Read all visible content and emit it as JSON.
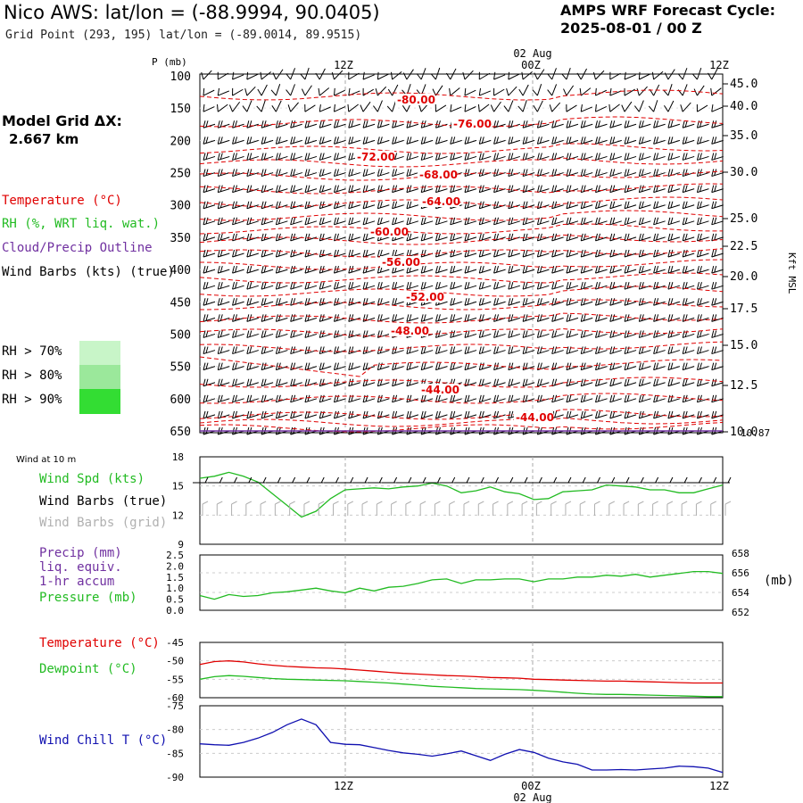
{
  "header": {
    "title": "Nico AWS:  lat/lon = (-88.9994, 90.0405)",
    "subtitle": "Grid Point (293, 195) lat/lon = (-89.0014, 89.9515)",
    "cycle_line1": "AMPS WRF Forecast Cycle:",
    "cycle_line2": "2025-08-01 / 00  Z"
  },
  "model_grid": {
    "label": "Model Grid ΔX:",
    "value": "2.667 km"
  },
  "legend_upper": {
    "temperature": "Temperature (°C)",
    "rh": "RH (%, WRT liq. wat.)",
    "cloud": "Cloud/Precip Outline",
    "wind": "Wind Barbs (kts) (true)",
    "rh70": "RH > 70%",
    "rh80": "RH > 80%",
    "rh90": "RH > 90%"
  },
  "legend_lower": {
    "wind10m": "Wind at 10 m",
    "wind_spd": "Wind Spd (kts)",
    "barbs_true": "Wind Barbs (true)",
    "barbs_grid": "Wind Barbs (grid)",
    "precip1": "Precip (mm)",
    "precip2": "liq. equiv.",
    "precip3": "1-hr accum",
    "pressure": "Pressure (mb)",
    "temperature": "Temperature (°C)",
    "dewpoint": "Dewpoint (°C)",
    "windchill": "Wind Chill T (°C)",
    "pressure_unit": "(mb)"
  },
  "colors": {
    "temperature": "#e00000",
    "rh": "#22bb22",
    "cloud": "#7030a0",
    "windchill": "#1010b0",
    "rh70": "#c8f5c8",
    "rh80": "#9be89b",
    "rh90": "#33dd33",
    "grid_barb": "#b0b0b0"
  },
  "time_axis": {
    "top_date": "02 Aug",
    "bottom_date": "02 Aug",
    "ticks": [
      "12Z",
      "00Z",
      "12Z"
    ]
  },
  "chart_data": [
    {
      "type": "line",
      "panel": "upper-air time-height section",
      "ylabel": "P (mb)",
      "y_right_label": "Kft MSL",
      "pressure_ticks": [
        100,
        150,
        200,
        250,
        300,
        350,
        400,
        450,
        500,
        550,
        600,
        650
      ],
      "kft_ticks": [
        "45.0",
        "40.0",
        "35.0",
        "30.0",
        "25.0",
        "22.5",
        "20.0",
        "17.5",
        "15.0",
        "12.5",
        "10.0"
      ],
      "kft_extra": "10.87",
      "isotherm_labels": [
        "-80.00",
        "-76.00",
        "-72.00",
        "-68.00",
        "-64.00",
        "-60.00",
        "-56.00",
        "-52.00",
        "-48.00",
        "-44.00",
        "-44.00"
      ]
    },
    {
      "type": "line",
      "panel": "10 m wind speed",
      "ylim": [
        9,
        18
      ],
      "yticks": [
        9,
        12,
        15,
        18
      ],
      "x": [
        0,
        1,
        2,
        3,
        4,
        5,
        6,
        7,
        8,
        9,
        10,
        11,
        12,
        13,
        14,
        15,
        16,
        17,
        18,
        19,
        20,
        21,
        22,
        23,
        24,
        25,
        26,
        27,
        28,
        29,
        30,
        31,
        32,
        33,
        34,
        35,
        36
      ],
      "series": [
        {
          "name": "Wind Spd (kts)",
          "values": [
            15.8,
            16.0,
            16.4,
            16.0,
            15.4,
            14.2,
            13.0,
            11.8,
            12.4,
            13.7,
            14.6,
            14.7,
            14.8,
            14.7,
            14.9,
            15.0,
            15.3,
            15.0,
            14.3,
            14.5,
            14.9,
            14.4,
            14.2,
            13.6,
            13.7,
            14.4,
            14.5,
            14.6,
            15.1,
            15.0,
            14.9,
            14.6,
            14.6,
            14.3,
            14.3,
            14.7,
            15.1
          ]
        }
      ]
    },
    {
      "type": "line",
      "panel": "precip / pressure",
      "ylim": [
        0,
        2.5
      ],
      "yticks": [
        "0.0",
        "0.5",
        "1.0",
        "1.5",
        "2.0",
        "2.5"
      ],
      "right_ticks": [
        "658",
        "656",
        "654",
        "652"
      ],
      "x": [
        0,
        1,
        2,
        3,
        4,
        5,
        6,
        7,
        8,
        9,
        10,
        11,
        12,
        13,
        14,
        15,
        16,
        17,
        18,
        19,
        20,
        21,
        22,
        23,
        24,
        25,
        26,
        27,
        28,
        29,
        30,
        31,
        32,
        33,
        34,
        35,
        36
      ],
      "series": [
        {
          "name": "Pressure (mb)",
          "values": [
            653.6,
            653.2,
            653.7,
            653.5,
            653.6,
            653.9,
            654.0,
            654.2,
            654.4,
            654.1,
            653.9,
            654.4,
            654.1,
            654.5,
            654.6,
            654.9,
            655.3,
            655.4,
            654.9,
            655.3,
            655.3,
            655.4,
            655.4,
            655.1,
            655.4,
            655.4,
            655.6,
            655.6,
            655.8,
            655.7,
            655.9,
            655.6,
            655.8,
            656.0,
            656.2,
            656.2,
            656.0
          ]
        }
      ]
    },
    {
      "type": "line",
      "panel": "temperature / dewpoint",
      "ylim": [
        -60,
        -45
      ],
      "yticks": [
        -45,
        -50,
        -55,
        -60
      ],
      "x": [
        0,
        1,
        2,
        3,
        4,
        5,
        6,
        7,
        8,
        9,
        10,
        11,
        12,
        13,
        14,
        15,
        16,
        17,
        18,
        19,
        20,
        21,
        22,
        23,
        24,
        25,
        26,
        27,
        28,
        29,
        30,
        31,
        32,
        33,
        34,
        35,
        36
      ],
      "series": [
        {
          "name": "Temperature (°C)",
          "values": [
            -51.0,
            -50.2,
            -50.0,
            -50.3,
            -50.8,
            -51.2,
            -51.5,
            -51.7,
            -51.9,
            -52.0,
            -52.2,
            -52.5,
            -52.8,
            -53.1,
            -53.4,
            -53.6,
            -53.8,
            -54.0,
            -54.1,
            -54.3,
            -54.5,
            -54.6,
            -54.7,
            -55.0,
            -55.1,
            -55.2,
            -55.3,
            -55.4,
            -55.5,
            -55.5,
            -55.6,
            -55.7,
            -55.8,
            -55.9,
            -56.0,
            -56.0,
            -56.0
          ]
        },
        {
          "name": "Dewpoint (°C)",
          "values": [
            -55.0,
            -54.3,
            -54.0,
            -54.2,
            -54.5,
            -54.8,
            -55.0,
            -55.1,
            -55.2,
            -55.3,
            -55.4,
            -55.6,
            -55.8,
            -56.0,
            -56.3,
            -56.6,
            -56.9,
            -57.1,
            -57.3,
            -57.5,
            -57.6,
            -57.7,
            -57.8,
            -58.0,
            -58.2,
            -58.5,
            -58.8,
            -59.0,
            -59.1,
            -59.1,
            -59.2,
            -59.3,
            -59.4,
            -59.5,
            -59.6,
            -59.7,
            -59.7
          ]
        }
      ]
    },
    {
      "type": "line",
      "panel": "wind chill",
      "ylim": [
        -90,
        -75
      ],
      "yticks": [
        -75,
        -80,
        -85,
        -90
      ],
      "x": [
        0,
        1,
        2,
        3,
        4,
        5,
        6,
        7,
        8,
        9,
        10,
        11,
        12,
        13,
        14,
        15,
        16,
        17,
        18,
        19,
        20,
        21,
        22,
        23,
        24,
        25,
        26,
        27,
        28,
        29,
        30,
        31,
        32,
        33,
        34,
        35,
        36
      ],
      "series": [
        {
          "name": "Wind Chill T (°C)",
          "values": [
            -83.0,
            -83.2,
            -83.3,
            -82.7,
            -81.8,
            -80.6,
            -79.0,
            -77.8,
            -79.0,
            -82.7,
            -83.1,
            -83.2,
            -83.8,
            -84.4,
            -84.9,
            -85.2,
            -85.6,
            -85.1,
            -84.5,
            -85.5,
            -86.5,
            -85.2,
            -84.2,
            -84.8,
            -86.0,
            -86.8,
            -87.3,
            -88.5,
            -88.5,
            -88.4,
            -88.5,
            -88.3,
            -88.1,
            -87.7,
            -87.8,
            -88.1,
            -89.0
          ]
        }
      ]
    }
  ]
}
